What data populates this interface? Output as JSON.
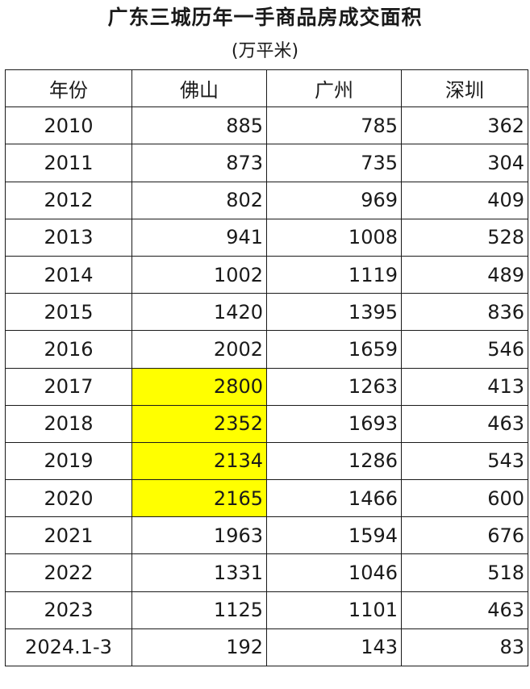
{
  "chart_data": {
    "type": "table",
    "title": "广东三城历年一手商品房成交面积",
    "subtitle": "(万平米)",
    "columns": [
      "年份",
      "佛山",
      "广州",
      "深圳"
    ],
    "highlight_color": "#ffff00",
    "rows": [
      {
        "year": "2010",
        "values": [
          885,
          785,
          362
        ],
        "highlight": [
          false,
          false,
          false
        ]
      },
      {
        "year": "2011",
        "values": [
          873,
          735,
          304
        ],
        "highlight": [
          false,
          false,
          false
        ]
      },
      {
        "year": "2012",
        "values": [
          802,
          969,
          409
        ],
        "highlight": [
          false,
          false,
          false
        ]
      },
      {
        "year": "2013",
        "values": [
          941,
          1008,
          528
        ],
        "highlight": [
          false,
          false,
          false
        ]
      },
      {
        "year": "2014",
        "values": [
          1002,
          1119,
          489
        ],
        "highlight": [
          false,
          false,
          false
        ]
      },
      {
        "year": "2015",
        "values": [
          1420,
          1395,
          836
        ],
        "highlight": [
          false,
          false,
          false
        ]
      },
      {
        "year": "2016",
        "values": [
          2002,
          1659,
          546
        ],
        "highlight": [
          false,
          false,
          false
        ]
      },
      {
        "year": "2017",
        "values": [
          2800,
          1263,
          413
        ],
        "highlight": [
          true,
          false,
          false
        ]
      },
      {
        "year": "2018",
        "values": [
          2352,
          1693,
          463
        ],
        "highlight": [
          true,
          false,
          false
        ]
      },
      {
        "year": "2019",
        "values": [
          2134,
          1286,
          543
        ],
        "highlight": [
          true,
          false,
          false
        ]
      },
      {
        "year": "2020",
        "values": [
          2165,
          1466,
          600
        ],
        "highlight": [
          true,
          false,
          false
        ]
      },
      {
        "year": "2021",
        "values": [
          1963,
          1594,
          676
        ],
        "highlight": [
          false,
          false,
          false
        ]
      },
      {
        "year": "2022",
        "values": [
          1331,
          1046,
          518
        ],
        "highlight": [
          false,
          false,
          false
        ]
      },
      {
        "year": "2023",
        "values": [
          1125,
          1101,
          463
        ],
        "highlight": [
          false,
          false,
          false
        ]
      },
      {
        "year": "2024.1-3",
        "values": [
          192,
          143,
          83
        ],
        "highlight": [
          false,
          false,
          false
        ]
      }
    ]
  }
}
